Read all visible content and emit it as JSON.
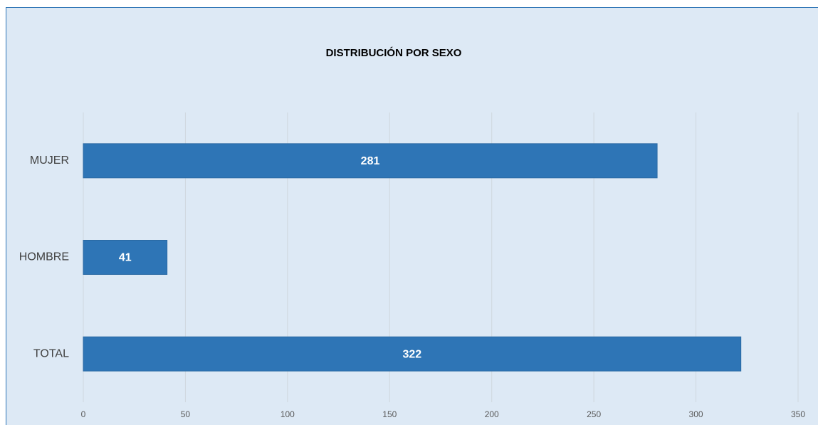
{
  "chart_data": {
    "type": "bar",
    "orientation": "horizontal",
    "title": "DISTRIBUCIÓN POR SEXO",
    "categories": [
      "MUJER",
      "HOMBRE",
      "TOTAL"
    ],
    "values": [
      281,
      41,
      322
    ],
    "color": "#2e75b6",
    "xlim": [
      0,
      350
    ],
    "xticks": [
      0,
      50,
      100,
      150,
      200,
      250,
      300,
      350
    ],
    "grid": true
  }
}
